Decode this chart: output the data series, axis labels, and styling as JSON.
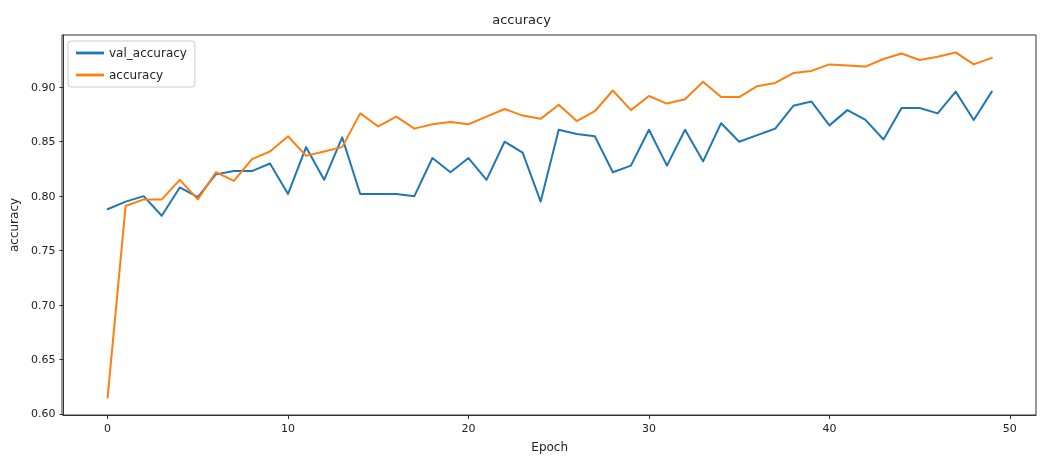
{
  "chart_data": {
    "type": "line",
    "title": "accuracy",
    "xlabel": "Epoch",
    "ylabel": "accuracy",
    "x": [
      0,
      1,
      2,
      3,
      4,
      5,
      6,
      7,
      8,
      9,
      10,
      11,
      12,
      13,
      14,
      15,
      16,
      17,
      18,
      19,
      20,
      21,
      22,
      23,
      24,
      25,
      26,
      27,
      28,
      29,
      30,
      31,
      32,
      33,
      34,
      35,
      36,
      37,
      38,
      39,
      40,
      41,
      42,
      43,
      44,
      45,
      46,
      47,
      48,
      49
    ],
    "series": [
      {
        "name": "val_accuracy",
        "color": "#1f77b4",
        "values": [
          0.788,
          0.795,
          0.8,
          0.782,
          0.808,
          0.799,
          0.82,
          0.823,
          0.823,
          0.83,
          0.802,
          0.845,
          0.815,
          0.854,
          0.802,
          0.802,
          0.802,
          0.8,
          0.835,
          0.822,
          0.835,
          0.815,
          0.85,
          0.84,
          0.795,
          0.861,
          0.857,
          0.855,
          0.822,
          0.828,
          0.861,
          0.828,
          0.861,
          0.832,
          0.867,
          0.85,
          0.856,
          0.862,
          0.883,
          0.887,
          0.865,
          0.879,
          0.87,
          0.852,
          0.881,
          0.881,
          0.876,
          0.896,
          0.87,
          0.896
        ]
      },
      {
        "name": "accuracy",
        "color": "#ff7f0e",
        "values": [
          0.615,
          0.791,
          0.797,
          0.797,
          0.815,
          0.797,
          0.822,
          0.814,
          0.834,
          0.841,
          0.855,
          0.837,
          0.841,
          0.845,
          0.876,
          0.864,
          0.873,
          0.862,
          0.866,
          0.868,
          0.866,
          0.873,
          0.88,
          0.874,
          0.871,
          0.884,
          0.869,
          0.878,
          0.897,
          0.879,
          0.892,
          0.885,
          0.889,
          0.905,
          0.891,
          0.891,
          0.901,
          0.904,
          0.913,
          0.915,
          0.921,
          0.92,
          0.919,
          0.926,
          0.931,
          0.925,
          0.928,
          0.932,
          0.921,
          0.927
        ]
      }
    ],
    "xlim": [
      -2.45,
      51.45
    ],
    "xticks": [
      0,
      10,
      20,
      30,
      40,
      50
    ],
    "ylim": [
      0.599,
      0.948
    ],
    "yticks": [
      {
        "value": 0.6,
        "label": "0.60"
      },
      {
        "value": 0.65,
        "label": "0.65"
      },
      {
        "value": 0.7,
        "label": "0.70"
      },
      {
        "value": 0.75,
        "label": "0.75"
      },
      {
        "value": 0.8,
        "label": "0.80"
      },
      {
        "value": 0.85,
        "label": "0.85"
      },
      {
        "value": 0.9,
        "label": "0.90"
      }
    ],
    "grid": false,
    "legend": "top left",
    "marker": "none",
    "line_style": "solid"
  }
}
